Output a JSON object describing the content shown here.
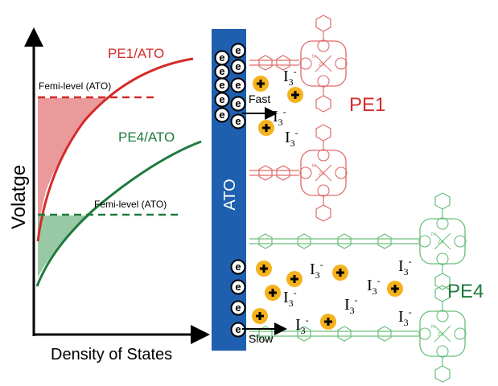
{
  "graph": {
    "y_axis_label": "Volatge",
    "x_axis_label": "Density of States",
    "curve_pe1_label": "PE1/ATO",
    "curve_pe4_label": "PE4/ATO",
    "fermi_pe1_label": "Femi-level (ATO)",
    "fermi_pe4_label": "Femi-level (ATO)"
  },
  "electrode": {
    "label": "ATO"
  },
  "upper": {
    "molecule_label": "PE1",
    "transfer_label": "Fast",
    "iodide_labels": [
      "I",
      "I",
      "I"
    ],
    "charge_superscript": "-"
  },
  "lower": {
    "molecule_label": "PE4",
    "transfer_label": "Slow",
    "iodide_labels": [
      "I",
      "I",
      "I",
      "I",
      "I",
      "I"
    ],
    "charge_superscript": "-"
  },
  "electron_symbol": "e",
  "hole_symbol": "+",
  "iodide_subscript": "3",
  "metal_label": "Zn",
  "nitrogen_label": "N",
  "colors": {
    "pe1": "#d42b2b",
    "pe4": "#1f7a3d",
    "electrode": "#1f5fb0",
    "hole": "#f5b21c",
    "fill_pe1": "#e8888a",
    "fill_pe4": "#86bf95"
  }
}
